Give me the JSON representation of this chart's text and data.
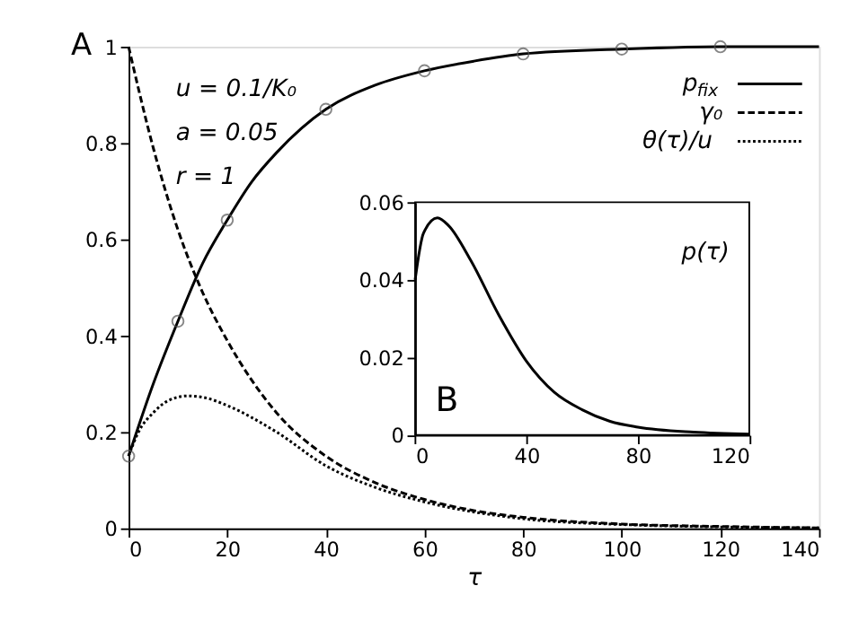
{
  "chart_data": [
    {
      "type": "line",
      "xlabel": "τ",
      "xlim": [
        0,
        140
      ],
      "ylim": [
        0,
        1
      ],
      "xticks": [
        0,
        20,
        40,
        60,
        80,
        100,
        120,
        140
      ],
      "yticks": [
        0,
        0.2,
        0.4,
        0.6,
        0.8,
        1
      ],
      "grid": false,
      "legend": "top right",
      "annotations": [
        "A",
        "u = 0.1/K₀",
        "a = 0.05",
        "r = 1"
      ],
      "series": [
        {
          "name": "p$_{fix}$",
          "color": "#000000",
          "line_style": "solid",
          "x": [
            0,
            5,
            10,
            15,
            20,
            25,
            30,
            40,
            50,
            60,
            70,
            80,
            100,
            120,
            140
          ],
          "values": [
            0.15,
            0.3,
            0.43,
            0.55,
            0.64,
            0.72,
            0.78,
            0.87,
            0.92,
            0.95,
            0.97,
            0.985,
            0.995,
            1.0,
            1.0
          ]
        },
        {
          "name": "γ₀",
          "color": "#000000",
          "line_style": "dashed",
          "x": [
            0,
            5,
            10,
            15,
            20,
            30,
            40,
            50,
            60,
            70,
            80,
            100,
            120,
            140
          ],
          "values": [
            1.0,
            0.79,
            0.62,
            0.49,
            0.39,
            0.24,
            0.15,
            0.095,
            0.06,
            0.037,
            0.023,
            0.009,
            0.004,
            0.001
          ]
        },
        {
          "name": "θ(τ)/u",
          "color": "#000000",
          "line_style": "dotted",
          "x": [
            0,
            2,
            5,
            8,
            12,
            16,
            20,
            30,
            40,
            50,
            60,
            80,
            100,
            120,
            140
          ],
          "values": [
            0.15,
            0.2,
            0.24,
            0.265,
            0.275,
            0.27,
            0.255,
            0.2,
            0.13,
            0.085,
            0.055,
            0.02,
            0.008,
            0.003,
            0.001
          ]
        },
        {
          "type": "scatter",
          "color": "#555555",
          "marker": "circle",
          "x": [
            0,
            10,
            20,
            40,
            60,
            80,
            100,
            120
          ],
          "values": [
            0.15,
            0.43,
            0.64,
            0.87,
            0.95,
            0.985,
            0.995,
            1.0
          ]
        }
      ]
    },
    {
      "type": "line",
      "xlim": [
        0,
        120
      ],
      "ylim": [
        0,
        0.06
      ],
      "xticks": [
        0,
        40,
        80,
        120
      ],
      "yticks": [
        0,
        0.02,
        0.04,
        0.06
      ],
      "grid": false,
      "annotations": [
        "B"
      ],
      "series": [
        {
          "name": "p(τ)",
          "color": "#000000",
          "line_style": "solid",
          "x": [
            0,
            3,
            8,
            12,
            20,
            30,
            40,
            50,
            60,
            70,
            80,
            100,
            120
          ],
          "values": [
            0.04,
            0.052,
            0.056,
            0.054,
            0.045,
            0.031,
            0.019,
            0.011,
            0.0065,
            0.0035,
            0.002,
            0.0007,
            0.0002
          ]
        }
      ]
    }
  ]
}
